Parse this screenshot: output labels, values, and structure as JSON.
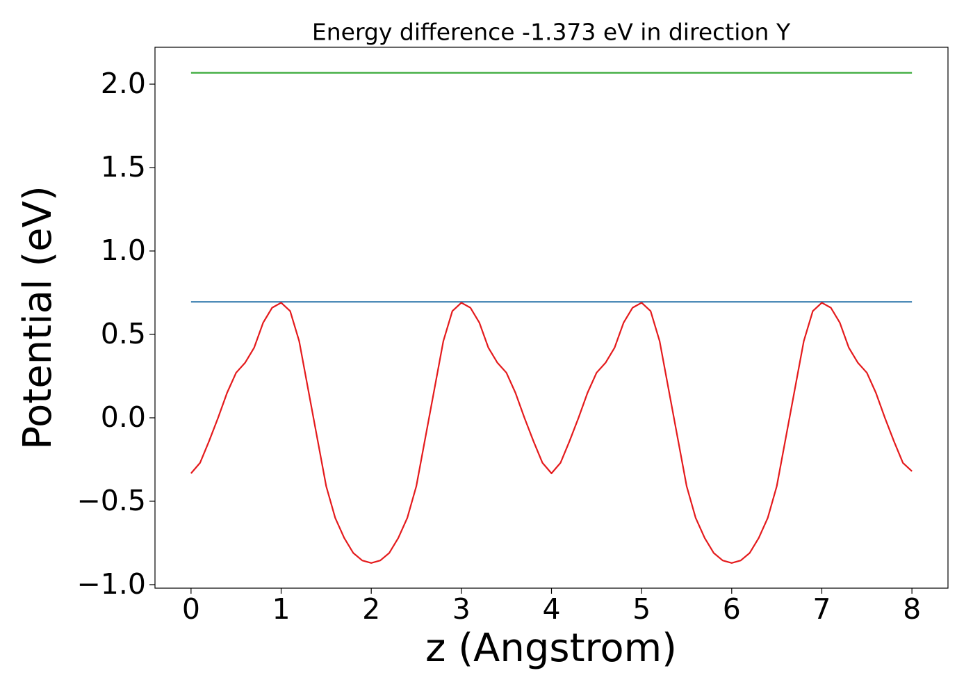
{
  "chart_data": {
    "type": "line",
    "title": "Energy difference -1.373 eV in direction Y",
    "xlabel": "z (Angstrom)",
    "ylabel": "Potential (eV)",
    "xlim": [
      -0.4,
      8.4
    ],
    "ylim": [
      -1.021,
      2.221
    ],
    "xticks": [
      0,
      1,
      2,
      3,
      4,
      5,
      6,
      7,
      8
    ],
    "yticks": [
      {
        "value": -1,
        "label": "−1.0"
      },
      {
        "value": -0.5,
        "label": "−0.5"
      },
      {
        "value": 0,
        "label": "0.0"
      },
      {
        "value": 0.5,
        "label": "0.5"
      },
      {
        "value": 1,
        "label": "1.0"
      },
      {
        "value": 1.5,
        "label": "1.5"
      },
      {
        "value": 2,
        "label": "2.0"
      }
    ],
    "grid": false,
    "series": [
      {
        "color": "#e41a1c",
        "x": [
          0,
          0.1,
          0.2,
          0.3,
          0.4,
          0.5,
          0.6,
          0.7,
          0.8,
          0.9,
          1,
          1.1,
          1.2,
          1.3,
          1.4,
          1.5,
          1.6,
          1.7,
          1.8,
          1.9,
          2,
          2.1,
          2.2,
          2.3,
          2.4,
          2.5,
          2.6,
          2.7,
          2.8,
          2.9,
          3,
          3.1,
          3.2,
          3.3,
          3.4,
          3.5,
          3.6,
          3.7,
          3.8,
          3.9,
          4,
          4.1,
          4.2,
          4.3,
          4.4,
          4.5,
          4.6,
          4.7,
          4.8,
          4.9,
          5,
          5.1,
          5.2,
          5.3,
          5.4,
          5.5,
          5.6,
          5.7,
          5.8,
          5.9,
          6,
          6.1,
          6.2,
          6.3,
          6.4,
          6.5,
          6.6,
          6.7,
          6.8,
          6.9,
          7,
          7.1,
          7.2,
          7.3,
          7.4,
          7.5,
          7.6,
          7.7,
          7.8,
          7.9,
          8
        ],
        "values": [
          -0.333,
          -0.27,
          -0.14,
          0.0,
          0.15,
          0.27,
          0.33,
          0.42,
          0.57,
          0.66,
          0.69,
          0.64,
          0.46,
          0.17,
          -0.12,
          -0.41,
          -0.6,
          -0.72,
          -0.81,
          -0.855,
          -0.87,
          -0.855,
          -0.81,
          -0.72,
          -0.6,
          -0.41,
          -0.12,
          0.17,
          0.46,
          0.64,
          0.69,
          0.66,
          0.57,
          0.42,
          0.33,
          0.27,
          0.15,
          0.0,
          -0.14,
          -0.27,
          -0.333,
          -0.27,
          -0.14,
          0.0,
          0.15,
          0.27,
          0.33,
          0.42,
          0.57,
          0.66,
          0.69,
          0.64,
          0.46,
          0.17,
          -0.12,
          -0.41,
          -0.6,
          -0.72,
          -0.81,
          -0.855,
          -0.87,
          -0.855,
          -0.81,
          -0.72,
          -0.6,
          -0.41,
          -0.12,
          0.17,
          0.46,
          0.64,
          0.69,
          0.66,
          0.57,
          0.42,
          0.33,
          0.27,
          0.15,
          0.0,
          -0.14,
          -0.27,
          -0.32
        ]
      },
      {
        "color": "#3a7fb0",
        "x": [
          0,
          8
        ],
        "values": [
          0.695,
          0.695
        ]
      },
      {
        "color": "#3cab3c",
        "x": [
          0,
          8
        ],
        "values": [
          2.068,
          2.068
        ]
      }
    ]
  }
}
